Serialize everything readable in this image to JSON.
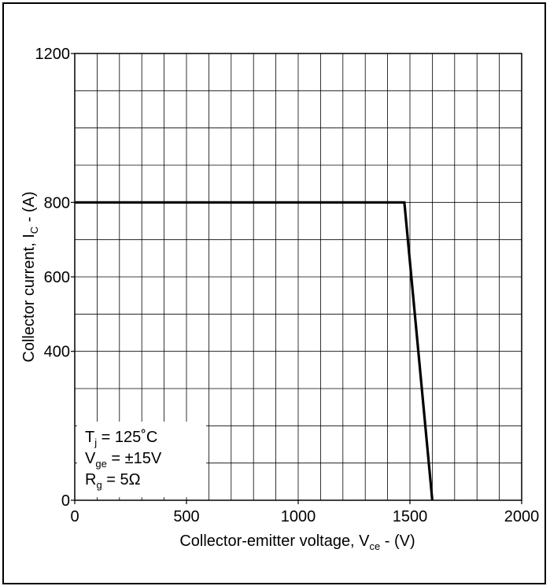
{
  "chart_data": {
    "type": "line",
    "xlabel_main": "Collector-emitter voltage, V",
    "xlabel_sub": "ce",
    "xlabel_tail": " - (V)",
    "ylabel_main": "Collector current, I",
    "ylabel_sub": "C",
    "ylabel_tail": " - (A)",
    "xlim": [
      0,
      2000
    ],
    "ylim": [
      0,
      1200
    ],
    "x_ticks": [
      0,
      500,
      1000,
      1500,
      2000
    ],
    "y_ticks": [
      0,
      400,
      600,
      800,
      1200
    ],
    "x_tick_labels": [
      "0",
      "500",
      "1000",
      "1500",
      "2000"
    ],
    "y_tick_labels": [
      "0",
      "400",
      "600",
      "800",
      "1200"
    ],
    "x_grid_step": 100,
    "y_grid_step": 100,
    "grid": true,
    "series": [
      {
        "x": [
          0,
          1475,
          1600
        ],
        "y": [
          800,
          800,
          0
        ]
      }
    ],
    "conditions": [
      {
        "sym": "T",
        "sub": "j",
        "rest": " = 125˚C"
      },
      {
        "sym": "V",
        "sub": "ge",
        "rest": " = ±15V"
      },
      {
        "sym": "R",
        "sub": "g",
        "rest": " = 5Ω"
      }
    ]
  }
}
